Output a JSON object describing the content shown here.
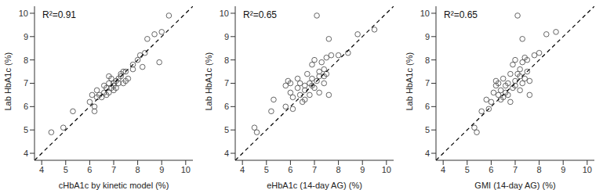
{
  "chart_data": [
    {
      "type": "scatter",
      "annotation": "R²=0.91",
      "x_label": "cHbA1c by kinetic model (%)",
      "y_label": "Lab HbA1c (%)",
      "xlim": [
        3.7,
        10.3
      ],
      "ylim": [
        3.7,
        10.3
      ],
      "xticks": [
        4,
        5,
        6,
        7,
        8,
        9,
        10
      ],
      "yticks": [
        4,
        5,
        6,
        7,
        8,
        9,
        10
      ],
      "series": [
        {
          "type": "scatter",
          "marker": "circle",
          "color": "#555555",
          "x": [
            4.4,
            4.9,
            5.3,
            6.0,
            6.1,
            6.2,
            6.2,
            6.3,
            6.4,
            6.3,
            6.5,
            6.6,
            6.7,
            6.7,
            6.8,
            6.8,
            6.9,
            6.9,
            7.0,
            7.0,
            7.1,
            7.1,
            7.2,
            7.2,
            7.3,
            7.3,
            7.4,
            7.5,
            7.5,
            7.6,
            7.8,
            7.8,
            8.0,
            8.1,
            8.3,
            8.4,
            8.7,
            8.9,
            9.0,
            9.3,
            6.8,
            7.0,
            6.6,
            7.4,
            8.2
          ],
          "values": [
            4.9,
            5.1,
            5.8,
            6.2,
            6.5,
            5.8,
            6.0,
            6.4,
            6.5,
            6.7,
            6.4,
            6.6,
            6.5,
            6.8,
            6.6,
            7.0,
            6.8,
            7.2,
            6.9,
            7.0,
            7.1,
            6.8,
            7.2,
            7.0,
            7.4,
            7.3,
            7.0,
            7.5,
            7.1,
            7.2,
            7.8,
            7.6,
            8.0,
            8.2,
            8.3,
            8.9,
            9.1,
            7.9,
            9.2,
            9.9,
            7.3,
            6.7,
            6.9,
            7.5,
            7.7
          ]
        },
        {
          "type": "line",
          "line_style": "dashed",
          "color": "#000000",
          "x": [
            3.7,
            10.3
          ],
          "values": [
            3.7,
            10.3
          ]
        }
      ]
    },
    {
      "type": "scatter",
      "annotation": "R²=0.65",
      "x_label": "eHbA1c (14-day AG) (%)",
      "y_label": "Lab HbA1c (%)",
      "xlim": [
        3.7,
        10.3
      ],
      "ylim": [
        3.7,
        10.3
      ],
      "xticks": [
        4,
        5,
        6,
        7,
        8,
        9,
        10
      ],
      "yticks": [
        4,
        5,
        6,
        7,
        8,
        9,
        10
      ],
      "series": [
        {
          "type": "scatter",
          "marker": "circle",
          "color": "#555555",
          "x": [
            4.5,
            4.6,
            5.2,
            5.3,
            5.8,
            5.8,
            5.9,
            6.0,
            6.0,
            6.1,
            6.1,
            6.3,
            6.3,
            6.4,
            6.4,
            6.5,
            6.6,
            6.6,
            6.7,
            6.8,
            6.8,
            6.9,
            6.9,
            7.0,
            7.0,
            7.1,
            7.1,
            7.2,
            7.2,
            7.3,
            7.4,
            7.4,
            7.5,
            7.5,
            7.6,
            7.6,
            7.7,
            8.0,
            8.4,
            8.8,
            9.5,
            7.2,
            6.6,
            7.4,
            6.9
          ],
          "values": [
            5.1,
            4.9,
            5.8,
            6.3,
            6.0,
            6.9,
            7.1,
            6.6,
            7.0,
            6.4,
            5.9,
            7.2,
            6.8,
            6.5,
            7.0,
            6.2,
            6.9,
            6.7,
            7.4,
            6.5,
            7.0,
            7.8,
            7.2,
            8.0,
            6.8,
            9.9,
            7.1,
            6.6,
            7.5,
            7.9,
            7.0,
            7.3,
            8.1,
            7.4,
            6.5,
            8.9,
            8.2,
            8.2,
            8.3,
            9.1,
            9.3,
            7.3,
            6.3,
            7.6,
            6.9
          ]
        },
        {
          "type": "line",
          "line_style": "dashed",
          "color": "#000000",
          "x": [
            3.7,
            10.3
          ],
          "values": [
            3.7,
            10.3
          ]
        }
      ]
    },
    {
      "type": "scatter",
      "annotation": "R²=0.65",
      "x_label": "GMI (14-day AG) (%)",
      "y_label": "Lab HbA1c (%)",
      "xlim": [
        3.7,
        10.3
      ],
      "ylim": [
        3.7,
        10.3
      ],
      "xticks": [
        4,
        5,
        6,
        7,
        8,
        9,
        10
      ],
      "yticks": [
        4,
        5,
        6,
        7,
        8,
        9,
        10
      ],
      "series": [
        {
          "type": "scatter",
          "marker": "circle",
          "color": "#555555",
          "x": [
            5.3,
            5.4,
            5.6,
            5.8,
            5.9,
            6.0,
            6.1,
            6.2,
            6.2,
            6.3,
            6.3,
            6.4,
            6.5,
            6.5,
            6.6,
            6.7,
            6.7,
            6.8,
            6.8,
            6.9,
            6.9,
            7.0,
            7.0,
            7.1,
            7.1,
            7.2,
            7.2,
            7.3,
            7.3,
            7.4,
            7.4,
            7.5,
            7.5,
            7.3,
            7.6,
            7.6,
            7.8,
            8.0,
            8.3,
            8.7,
            6.6,
            7.0,
            7.2,
            6.4
          ],
          "values": [
            5.1,
            4.9,
            5.8,
            6.3,
            5.9,
            6.2,
            6.6,
            6.9,
            7.1,
            6.5,
            7.0,
            6.7,
            7.2,
            6.4,
            6.9,
            7.0,
            6.5,
            6.2,
            7.4,
            7.8,
            6.8,
            8.0,
            7.1,
            9.9,
            7.4,
            7.3,
            6.7,
            7.9,
            7.0,
            8.1,
            7.2,
            7.5,
            8.0,
            8.9,
            7.1,
            6.5,
            8.2,
            8.3,
            9.1,
            9.2,
            6.6,
            6.9,
            7.6,
            6.3
          ]
        },
        {
          "type": "line",
          "line_style": "dashed",
          "color": "#000000",
          "x": [
            3.7,
            10.3
          ],
          "values": [
            3.7,
            10.3
          ]
        }
      ]
    }
  ]
}
